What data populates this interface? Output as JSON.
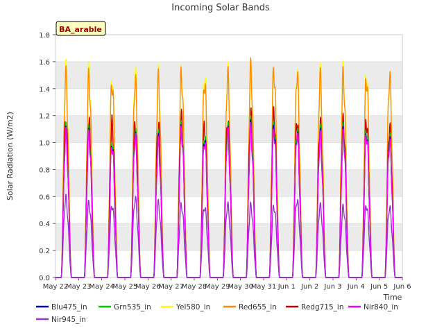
{
  "chart_data": {
    "type": "line",
    "title": "Incoming Solar Bands",
    "xlabel": "Time",
    "ylabel": "Solar Radiation (W/m2)",
    "badge": "BA_arable",
    "ylim": [
      0,
      1.8
    ],
    "yticks": [
      "0.0",
      "0.2",
      "0.4",
      "0.6",
      "0.8",
      "1.0",
      "1.2",
      "1.4",
      "1.6",
      "1.8"
    ],
    "xlim": [
      "2023-05-22",
      "2023-06-06"
    ],
    "xticks": [
      "May 22",
      "May 23",
      "May 24",
      "May 25",
      "May 26",
      "May 27",
      "May 28",
      "May 29",
      "May 30",
      "May 31",
      "Jun 1",
      "Jun 2",
      "Jun 3",
      "Jun 4",
      "Jun 5",
      "Jun 6"
    ],
    "grid": "horizontal bands",
    "legend_position": "bottom",
    "days": [
      "2023-05-22",
      "2023-05-23",
      "2023-05-24",
      "2023-05-25",
      "2023-05-26",
      "2023-05-27",
      "2023-05-28",
      "2023-05-29",
      "2023-05-30",
      "2023-05-31",
      "2023-06-01",
      "2023-06-02",
      "2023-06-03",
      "2023-06-04",
      "2023-06-05"
    ],
    "series": [
      {
        "name": "Blu475_in",
        "color": "#0000cc",
        "peaks": [
          1.13,
          1.12,
          1.05,
          1.11,
          1.07,
          1.16,
          1.1,
          1.14,
          1.17,
          1.18,
          1.14,
          1.12,
          1.13,
          1.14,
          1.08
        ]
      },
      {
        "name": "Grn535_in",
        "color": "#00cc00",
        "peaks": [
          1.16,
          1.15,
          1.08,
          1.14,
          1.1,
          1.19,
          1.13,
          1.17,
          1.2,
          1.21,
          1.17,
          1.15,
          1.16,
          1.17,
          1.11
        ]
      },
      {
        "name": "Yel580_in",
        "color": "#ffff00",
        "peaks": [
          1.63,
          1.62,
          1.57,
          1.61,
          1.58,
          1.61,
          1.6,
          1.62,
          1.63,
          1.62,
          1.63,
          1.61,
          1.62,
          1.61,
          1.58
        ]
      },
      {
        "name": "Red655_in",
        "color": "#ff8c00",
        "peaks": [
          1.58,
          1.57,
          1.54,
          1.55,
          1.55,
          1.6,
          1.55,
          1.59,
          1.63,
          1.63,
          1.61,
          1.57,
          1.58,
          1.58,
          1.58
        ]
      },
      {
        "name": "Redg715_in",
        "color": "#cc0000",
        "peaks": [
          1.22,
          1.22,
          1.21,
          1.2,
          1.2,
          1.25,
          1.18,
          1.23,
          1.27,
          1.28,
          1.23,
          1.21,
          1.22,
          1.23,
          1.18
        ]
      },
      {
        "name": "Nir840_in",
        "color": "#ff00ff",
        "peaks": [
          1.12,
          1.11,
          1.04,
          1.1,
          1.05,
          1.15,
          1.08,
          1.13,
          1.15,
          1.15,
          1.13,
          1.1,
          1.11,
          1.13,
          1.06
        ]
      },
      {
        "name": "Nir945_in",
        "color": "#9933cc",
        "peaks": [
          0.62,
          0.58,
          0.57,
          0.62,
          0.58,
          0.57,
          0.56,
          0.57,
          0.56,
          0.56,
          0.61,
          0.56,
          0.55,
          0.57,
          0.55
        ]
      }
    ]
  }
}
